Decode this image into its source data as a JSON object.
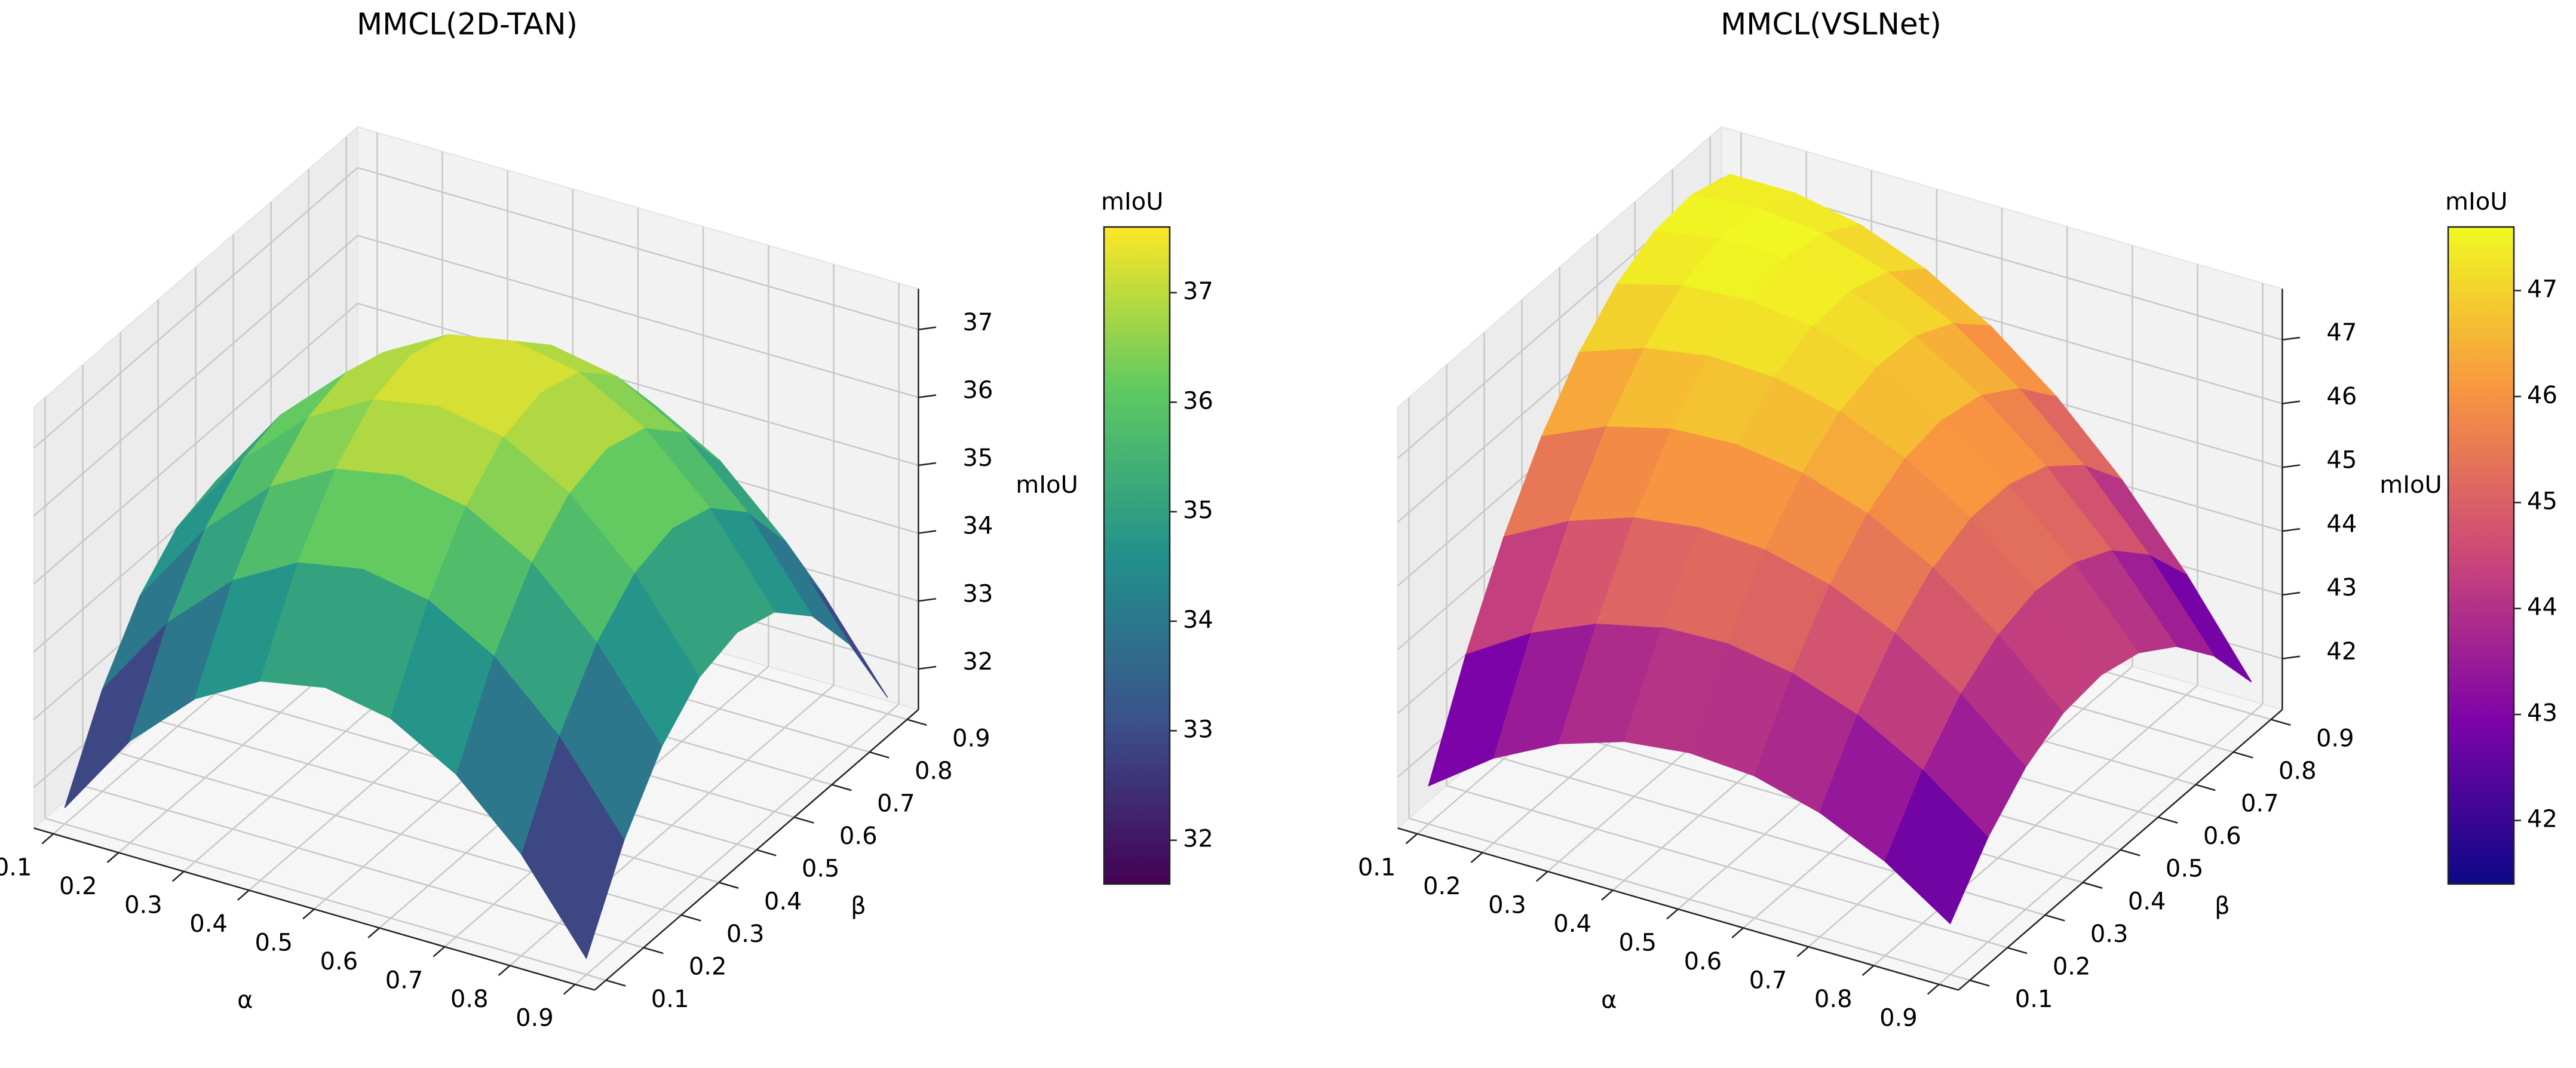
{
  "chart_data": [
    {
      "type": "surface",
      "title": "MMCL(2D-TAN)",
      "xlabel": "α",
      "ylabel": "β",
      "zlabel": "mIoU",
      "colorbar_label": "mIoU",
      "x": [
        0.1,
        0.2,
        0.3,
        0.4,
        0.5,
        0.6,
        0.7,
        0.8,
        0.9
      ],
      "y": [
        0.1,
        0.2,
        0.3,
        0.4,
        0.5,
        0.6,
        0.7,
        0.8,
        0.9
      ],
      "z": [
        [
          31.64,
          32.9,
          33.8,
          34.34,
          34.52,
          34.34,
          33.8,
          32.9,
          31.64
        ],
        [
          32.9,
          34.16,
          35.06,
          35.6,
          35.78,
          35.6,
          35.06,
          34.16,
          32.9
        ],
        [
          33.8,
          35.06,
          35.96,
          36.5,
          36.68,
          36.5,
          35.96,
          35.06,
          33.8
        ],
        [
          34.34,
          35.6,
          36.5,
          37.04,
          37.22,
          37.04,
          36.5,
          35.6,
          34.34
        ],
        [
          34.52,
          35.78,
          36.68,
          37.22,
          37.4,
          37.22,
          36.68,
          35.78,
          34.52
        ],
        [
          34.34,
          35.6,
          36.5,
          37.04,
          37.22,
          37.04,
          36.5,
          35.6,
          34.34
        ],
        [
          33.8,
          35.06,
          35.96,
          36.5,
          36.68,
          36.5,
          35.96,
          35.06,
          33.8
        ],
        [
          32.9,
          34.16,
          35.06,
          35.6,
          35.78,
          35.6,
          35.06,
          34.16,
          32.9
        ],
        [
          31.64,
          32.9,
          33.8,
          34.34,
          34.52,
          34.34,
          33.8,
          32.9,
          31.64
        ]
      ],
      "xlim": [
        0.07,
        0.93
      ],
      "ylim": [
        0.07,
        0.93
      ],
      "zlim": [
        31.4,
        37.6
      ],
      "xticks": [
        0.1,
        0.2,
        0.3,
        0.4,
        0.5,
        0.6,
        0.7,
        0.8,
        0.9
      ],
      "yticks": [
        0.1,
        0.2,
        0.3,
        0.4,
        0.5,
        0.6,
        0.7,
        0.8,
        0.9
      ],
      "zticks": [
        32,
        33,
        34,
        35,
        36,
        37
      ],
      "clim": [
        31.6,
        37.6
      ],
      "cticks": [
        32,
        33,
        34,
        35,
        36,
        37
      ],
      "colormap": [
        "#440154",
        "#3b528b",
        "#21918c",
        "#5ec962",
        "#fde725"
      ]
    },
    {
      "type": "surface",
      "title": "MMCL(VSLNet)",
      "xlabel": "α",
      "ylabel": "β",
      "zlabel": "mIoU",
      "colorbar_label": "mIoU",
      "x": [
        0.1,
        0.2,
        0.3,
        0.4,
        0.5,
        0.6,
        0.7,
        0.8,
        0.9
      ],
      "y": [
        0.1,
        0.2,
        0.3,
        0.4,
        0.5,
        0.6,
        0.7,
        0.8,
        0.9
      ],
      "z": [
        [
          41.8,
          42.53,
          43.05,
          43.38,
          43.5,
          43.43,
          43.15,
          42.68,
          42.0
        ],
        [
          43.36,
          43.99,
          44.43,
          44.66,
          44.7,
          44.53,
          44.17,
          43.6,
          42.84
        ],
        [
          44.68,
          45.22,
          45.57,
          45.71,
          45.66,
          45.4,
          44.94,
          44.29,
          43.43
        ],
        [
          45.74,
          46.19,
          46.45,
          46.5,
          46.35,
          46.01,
          45.46,
          44.71,
          43.77
        ],
        [
          46.55,
          46.91,
          47.08,
          47.04,
          46.8,
          46.36,
          45.73,
          44.89,
          43.85
        ],
        [
          47.11,
          47.38,
          47.45,
          47.33,
          47.0,
          46.47,
          45.74,
          44.81,
          43.69
        ],
        [
          47.43,
          47.61,
          47.59,
          47.37,
          46.96,
          46.34,
          45.52,
          44.5,
          43.28
        ],
        [
          47.49,
          47.58,
          47.47,
          47.16,
          46.65,
          45.94,
          45.03,
          43.92,
          42.62
        ],
        [
          47.3,
          47.3,
          47.1,
          46.7,
          46.1,
          45.3,
          44.3,
          43.1,
          41.7
        ]
      ],
      "xlim": [
        0.07,
        0.93
      ],
      "ylim": [
        0.07,
        0.93
      ],
      "zlim": [
        41.2,
        47.8
      ],
      "xticks": [
        0.1,
        0.2,
        0.3,
        0.4,
        0.5,
        0.6,
        0.7,
        0.8,
        0.9
      ],
      "yticks": [
        0.1,
        0.2,
        0.3,
        0.4,
        0.5,
        0.6,
        0.7,
        0.8,
        0.9
      ],
      "zticks": [
        42,
        43,
        44,
        45,
        46,
        47
      ],
      "clim": [
        41.4,
        47.6
      ],
      "cticks": [
        42,
        43,
        44,
        45,
        46,
        47
      ],
      "colormap": [
        "#0d0887",
        "#7e03a8",
        "#cc4778",
        "#f89540",
        "#f0f921"
      ]
    }
  ]
}
